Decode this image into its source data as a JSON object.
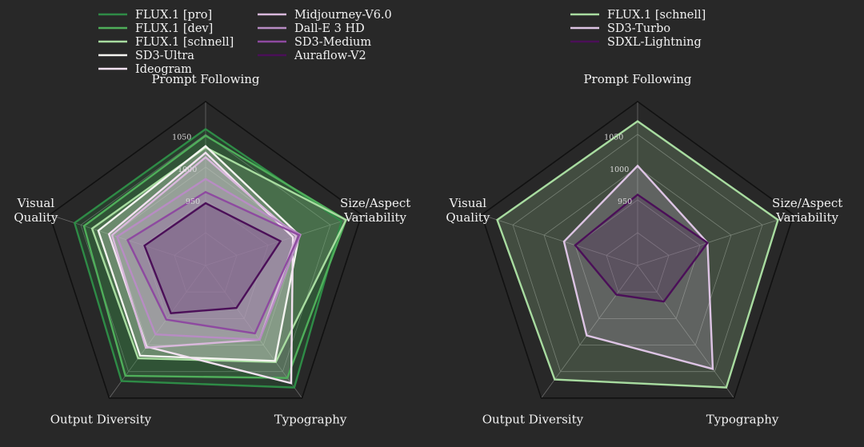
{
  "colors": {
    "background": "#282828",
    "frame": "#111111",
    "grid": "#6a6a6a",
    "text": "#f2f2f2"
  },
  "chart_data": [
    {
      "type": "radar",
      "axes": [
        "Prompt Following",
        "Size/Aspect Variability",
        "Typography",
        "Output Diversity",
        "Visual Quality"
      ],
      "axis_label_lines": [
        [
          "Prompt Following"
        ],
        [
          "Size/Aspect",
          "Variability"
        ],
        [
          "Typography"
        ],
        [
          "Output Diversity"
        ],
        [
          "Visual",
          "Quality"
        ]
      ],
      "rlim": [
        850,
        1100
      ],
      "ticks": [
        950,
        1000,
        1050
      ],
      "tick_labels": [
        "950",
        "1000",
        "1050"
      ],
      "legend": {
        "placement": "top",
        "columns": 2
      },
      "series": [
        {
          "name": "FLUX.1 [pro]",
          "color": "#2e8b46",
          "values": [
            1058,
            1068,
            1080,
            1068,
            1060
          ]
        },
        {
          "name": "FLUX.1 [dev]",
          "color": "#4fae5a",
          "values": [
            1048,
            1075,
            1062,
            1058,
            1045
          ]
        },
        {
          "name": "FLUX.1 [schnell]",
          "color": "#a8dca0",
          "values": [
            1030,
            1075,
            1032,
            1025,
            1032
          ]
        },
        {
          "name": "SD3-Ultra",
          "color": "#f4f4f0",
          "values": [
            1032,
            1000,
            1030,
            1020,
            1022
          ]
        },
        {
          "name": "Ideogram",
          "color": "#f3e2f1",
          "values": [
            1022,
            990,
            1072,
            1003,
            1005
          ]
        },
        {
          "name": "Midjourney-V6.0",
          "color": "#d9b8dc",
          "values": [
            1015,
            995,
            990,
            1005,
            1000
          ]
        },
        {
          "name": "Dall-E 3 HD",
          "color": "#b88cc4",
          "values": [
            982,
            1002,
            990,
            980,
            992
          ]
        },
        {
          "name": "SD3-Medium",
          "color": "#8e4aa0",
          "values": [
            962,
            1000,
            978,
            952,
            975
          ]
        },
        {
          "name": "Auraflow-V2",
          "color": "#4b0f58",
          "values": [
            945,
            970,
            930,
            940,
            948
          ]
        }
      ]
    },
    {
      "type": "radar",
      "axes": [
        "Prompt Following",
        "Size/Aspect Variability",
        "Typography",
        "Output Diversity",
        "Visual Quality"
      ],
      "axis_label_lines": [
        [
          "Prompt Following"
        ],
        [
          "Size/Aspect",
          "Variability"
        ],
        [
          "Typography"
        ],
        [
          "Output Diversity"
        ],
        [
          "Visual",
          "Quality"
        ]
      ],
      "rlim": [
        850,
        1100
      ],
      "ticks": [
        950,
        1000,
        1050
      ],
      "tick_labels": [
        "950",
        "1000",
        "1050"
      ],
      "legend": {
        "placement": "top",
        "columns": 1
      },
      "series": [
        {
          "name": "FLUX.1 [schnell]",
          "color": "#a8dca0",
          "values": [
            1070,
            1075,
            1080,
            1065,
            1075
          ]
        },
        {
          "name": "SD3-Turbo",
          "color": "#ddc4e4",
          "values": [
            1002,
            962,
            1045,
            982,
            968
          ]
        },
        {
          "name": "SDXL-Lightning",
          "color": "#4b0f58",
          "values": [
            958,
            962,
            918,
            905,
            950
          ]
        }
      ]
    }
  ]
}
